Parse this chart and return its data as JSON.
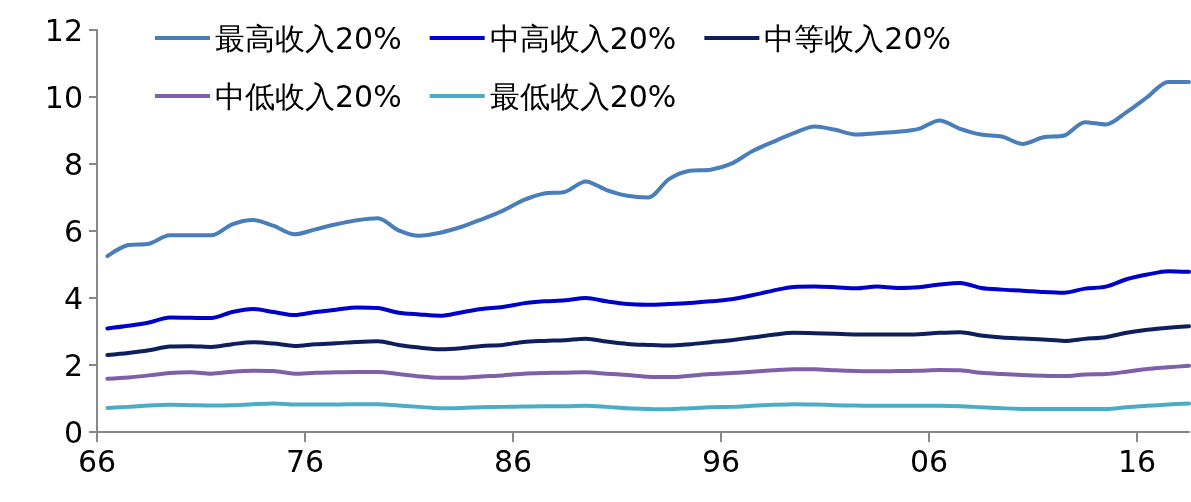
{
  "chart_data": {
    "type": "line",
    "x": [
      1966.5,
      1967.5,
      1968.5,
      1969.5,
      1970.5,
      1971.5,
      1972.5,
      1973.5,
      1974.5,
      1975.5,
      1976.5,
      1977.5,
      1978.5,
      1979.5,
      1980.5,
      1981.5,
      1982.5,
      1983.5,
      1984.5,
      1985.5,
      1986.5,
      1987.5,
      1988.5,
      1989.5,
      1990.5,
      1991.5,
      1992.5,
      1993.5,
      1994.5,
      1995.5,
      1996.5,
      1997.5,
      1998.5,
      1999.5,
      2000.5,
      2001.5,
      2002.5,
      2003.5,
      2004.5,
      2005.5,
      2006.5,
      2007.5,
      2008.5,
      2009.5,
      2010.5,
      2011.5,
      2012.5,
      2013.5,
      2014.5,
      2015.5,
      2016.5,
      2017.5,
      2018.5
    ],
    "series": [
      {
        "name": "最高收入20%",
        "color": "#4a7ebb",
        "values": [
          5.25,
          5.58,
          5.62,
          5.87,
          5.87,
          5.87,
          6.2,
          6.33,
          6.15,
          5.9,
          6.05,
          6.2,
          6.32,
          6.38,
          6.02,
          5.86,
          5.95,
          6.12,
          6.35,
          6.6,
          6.92,
          7.12,
          7.17,
          7.48,
          7.22,
          7.05,
          7.0,
          7.55,
          7.8,
          7.83,
          8.01,
          8.38,
          8.66,
          8.92,
          9.12,
          9.02,
          8.88,
          8.92,
          8.96,
          9.05,
          9.3,
          9.05,
          8.88,
          8.82,
          8.6,
          8.8,
          8.85,
          9.25,
          9.18,
          9.55,
          10.0,
          10.45,
          10.45
        ]
      },
      {
        "name": "中高收入20%",
        "color": "#0000cc",
        "values": [
          3.09,
          3.17,
          3.27,
          3.42,
          3.41,
          3.4,
          3.58,
          3.67,
          3.58,
          3.49,
          3.58,
          3.65,
          3.72,
          3.7,
          3.56,
          3.51,
          3.47,
          3.57,
          3.67,
          3.73,
          3.84,
          3.9,
          3.93,
          4.0,
          3.9,
          3.82,
          3.8,
          3.82,
          3.85,
          3.9,
          3.96,
          4.08,
          4.22,
          4.33,
          4.34,
          4.32,
          4.29,
          4.34,
          4.3,
          4.32,
          4.4,
          4.45,
          4.3,
          4.25,
          4.22,
          4.18,
          4.16,
          4.28,
          4.34,
          4.56,
          4.7,
          4.8,
          4.78
        ]
      },
      {
        "name": "中等收入20%",
        "color": "#0d1f5c",
        "values": [
          2.3,
          2.36,
          2.44,
          2.55,
          2.56,
          2.54,
          2.62,
          2.68,
          2.64,
          2.57,
          2.62,
          2.65,
          2.69,
          2.71,
          2.6,
          2.52,
          2.47,
          2.5,
          2.57,
          2.6,
          2.69,
          2.72,
          2.74,
          2.78,
          2.7,
          2.63,
          2.6,
          2.58,
          2.62,
          2.68,
          2.74,
          2.82,
          2.9,
          2.96,
          2.95,
          2.93,
          2.91,
          2.91,
          2.91,
          2.92,
          2.96,
          2.98,
          2.88,
          2.82,
          2.79,
          2.76,
          2.72,
          2.78,
          2.83,
          2.96,
          3.05,
          3.11,
          3.16
        ]
      },
      {
        "name": "中低收入20%",
        "color": "#7f60a8",
        "values": [
          1.59,
          1.63,
          1.69,
          1.76,
          1.78,
          1.74,
          1.8,
          1.83,
          1.82,
          1.74,
          1.77,
          1.78,
          1.79,
          1.79,
          1.73,
          1.66,
          1.62,
          1.62,
          1.66,
          1.69,
          1.74,
          1.76,
          1.77,
          1.78,
          1.74,
          1.7,
          1.65,
          1.64,
          1.68,
          1.73,
          1.76,
          1.8,
          1.84,
          1.87,
          1.87,
          1.84,
          1.82,
          1.81,
          1.82,
          1.83,
          1.85,
          1.84,
          1.77,
          1.73,
          1.7,
          1.68,
          1.67,
          1.72,
          1.73,
          1.8,
          1.88,
          1.93,
          1.98
        ]
      },
      {
        "name": "最低收入20%",
        "color": "#4bacc6",
        "values": [
          0.72,
          0.75,
          0.79,
          0.81,
          0.8,
          0.79,
          0.8,
          0.83,
          0.85,
          0.82,
          0.82,
          0.82,
          0.83,
          0.83,
          0.79,
          0.75,
          0.71,
          0.72,
          0.74,
          0.75,
          0.76,
          0.77,
          0.77,
          0.78,
          0.75,
          0.71,
          0.69,
          0.68,
          0.71,
          0.74,
          0.75,
          0.78,
          0.81,
          0.83,
          0.82,
          0.8,
          0.79,
          0.78,
          0.78,
          0.78,
          0.78,
          0.77,
          0.74,
          0.71,
          0.69,
          0.69,
          0.69,
          0.69,
          0.69,
          0.74,
          0.78,
          0.82,
          0.85
        ]
      }
    ],
    "xlim": [
      1966,
      2018.5
    ],
    "xticks": [
      {
        "value": 1966,
        "label": "66"
      },
      {
        "value": 1976,
        "label": "76"
      },
      {
        "value": 1986,
        "label": "86"
      },
      {
        "value": 1996,
        "label": "96"
      },
      {
        "value": 2006,
        "label": "06"
      },
      {
        "value": 2016,
        "label": "16"
      }
    ],
    "ylim": [
      0,
      12
    ],
    "yticks": [
      0,
      2,
      4,
      6,
      8,
      10,
      12
    ],
    "legend": "top",
    "marker": "none",
    "line_style": "solid"
  }
}
